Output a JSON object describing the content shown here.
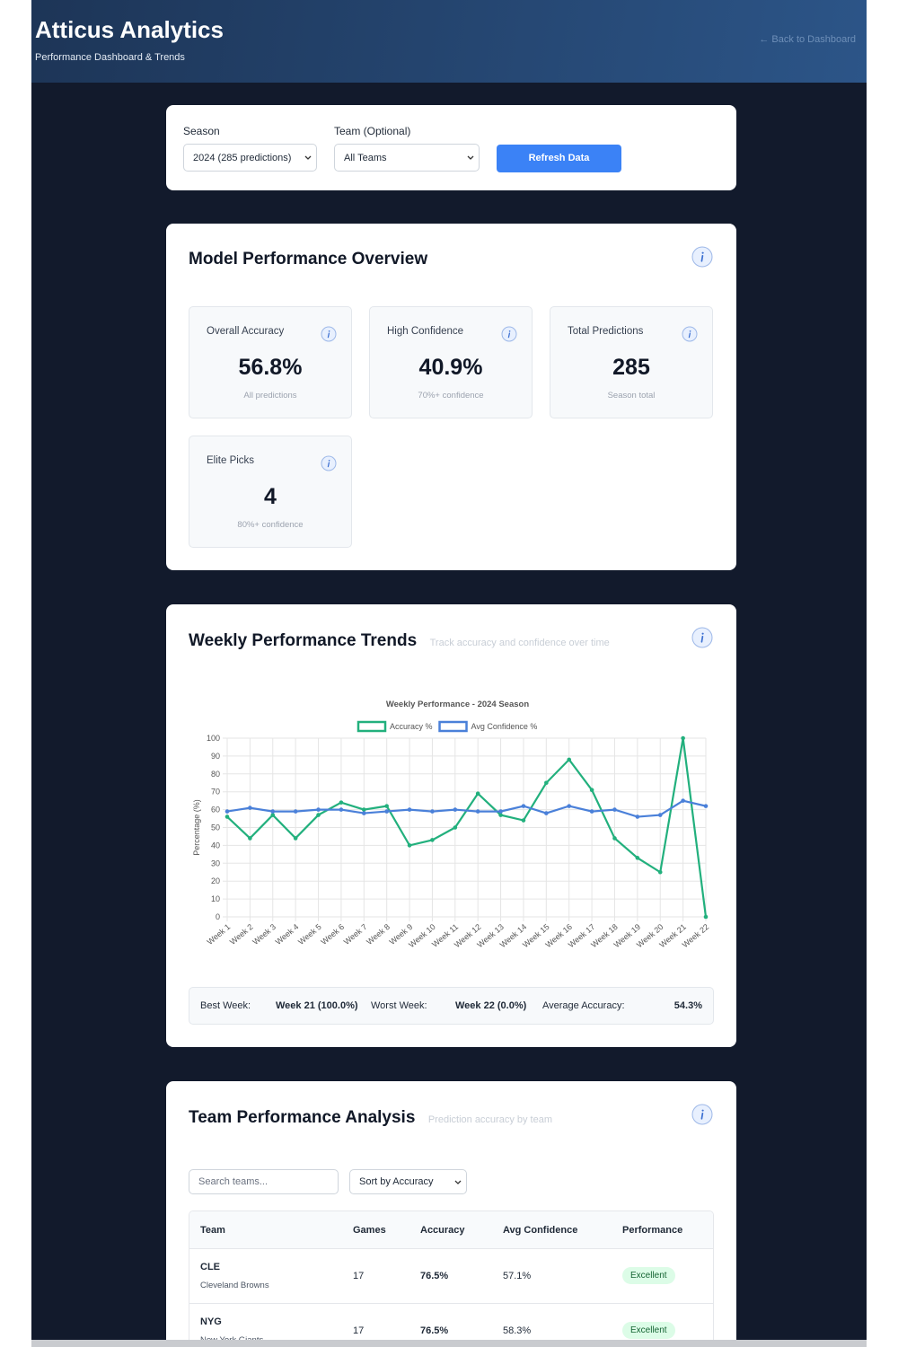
{
  "header": {
    "title": "Atticus Analytics",
    "subtitle": "Performance Dashboard & Trends",
    "back_link": "← Back to Dashboard"
  },
  "filters": {
    "season_label": "Season",
    "season_value": "2024 (285 predictions)",
    "team_label": "Team (Optional)",
    "team_value": "All Teams",
    "refresh_button": "Refresh Data"
  },
  "overview": {
    "title": "Model Performance Overview",
    "cards": [
      {
        "label": "Overall Accuracy",
        "value": "56.8%",
        "note": "All predictions"
      },
      {
        "label": "High Confidence",
        "value": "40.9%",
        "note": "70%+ confidence"
      },
      {
        "label": "Total Predictions",
        "value": "285",
        "note": "Season total"
      },
      {
        "label": "Elite Picks",
        "value": "4",
        "note": "80%+ confidence"
      }
    ]
  },
  "trends": {
    "title": "Weekly Performance Trends",
    "subtitle": "Track accuracy and confidence over time",
    "summary": [
      {
        "label": "Best Week:",
        "value": "Week 21 (100.0%)"
      },
      {
        "label": "Worst Week:",
        "value": "Week 22 (0.0%)"
      },
      {
        "label": "Average Accuracy:",
        "value": "54.3%"
      }
    ]
  },
  "chart_data": {
    "type": "line",
    "title": "Weekly Performance - 2024 Season",
    "y_label": "Percentage (%)",
    "categories": [
      "Week 1",
      "Week 2",
      "Week 3",
      "Week 4",
      "Week 5",
      "Week 6",
      "Week 7",
      "Week 8",
      "Week 9",
      "Week 10",
      "Week 11",
      "Week 12",
      "Week 13",
      "Week 14",
      "Week 15",
      "Week 16",
      "Week 17",
      "Week 18",
      "Week 19",
      "Week 20",
      "Week 21",
      "Week 22"
    ],
    "series": [
      {
        "name": "Accuracy %",
        "color": "#22b07d",
        "values": [
          56,
          44,
          57,
          44,
          57,
          64,
          60,
          62,
          40,
          43,
          50,
          69,
          57,
          54,
          75,
          88,
          71,
          44,
          33,
          25,
          100,
          0
        ]
      },
      {
        "name": "Avg Confidence %",
        "color": "#4a80d9",
        "values": [
          59,
          61,
          59,
          59,
          60,
          60,
          58,
          59,
          60,
          59,
          60,
          59,
          59,
          62,
          58,
          62,
          59,
          60,
          56,
          57,
          65,
          62
        ]
      }
    ],
    "ylim": [
      0,
      100
    ],
    "yticks": [
      0,
      10,
      20,
      30,
      40,
      50,
      60,
      70,
      80,
      90,
      100
    ],
    "grid": true,
    "legend": "top"
  },
  "teams": {
    "title": "Team Performance Analysis",
    "subtitle": "Prediction accuracy by team",
    "search_placeholder": "Search teams...",
    "sort_value": "Sort by Accuracy",
    "columns": [
      "Team",
      "Games",
      "Accuracy",
      "Avg Confidence",
      "Performance"
    ],
    "rows": [
      [
        "CLE",
        "Cleveland Browns",
        "17",
        "76.5%",
        "57.1%",
        "Excellent"
      ],
      [
        "NYG",
        "New York Giants",
        "17",
        "76.5%",
        "58.3%",
        "Excellent"
      ]
    ]
  }
}
